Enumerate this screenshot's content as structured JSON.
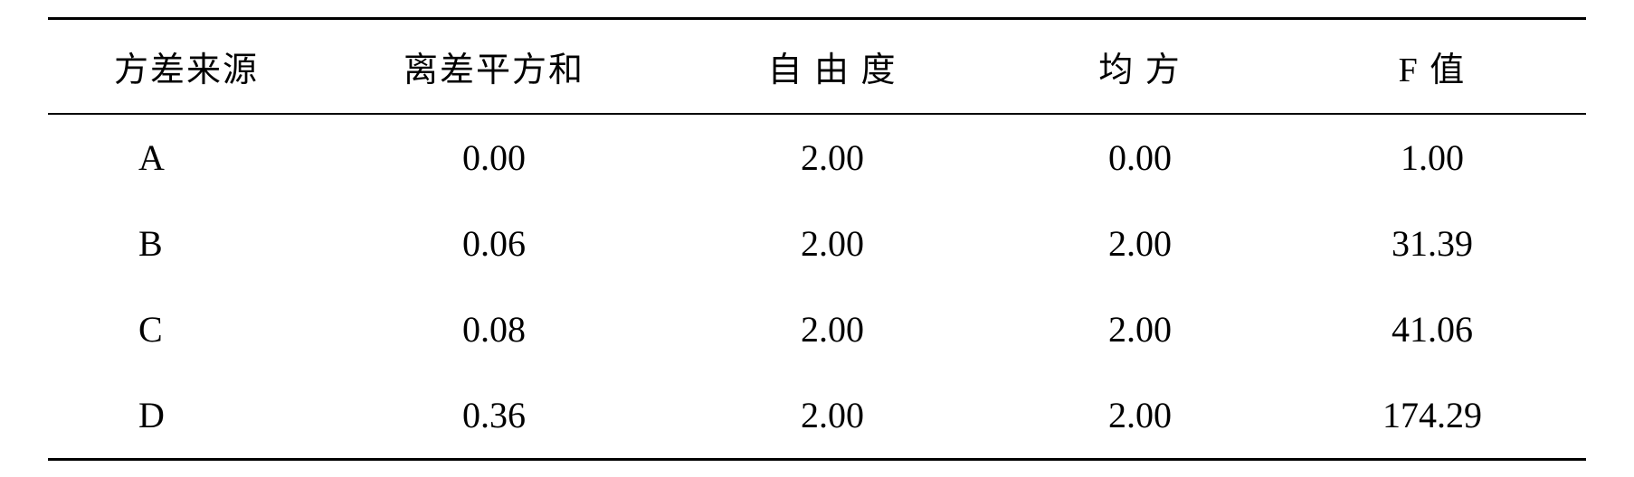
{
  "table": {
    "columns": [
      "方差来源",
      "离差平方和",
      "自 由 度",
      "均 方",
      "F 值"
    ],
    "rows": [
      [
        "A",
        "0.00",
        "2.00",
        "0.00",
        "1.00"
      ],
      [
        "B",
        "0.06",
        "2.00",
        "2.00",
        "31.39"
      ],
      [
        "C",
        "0.08",
        "2.00",
        "2.00",
        "41.06"
      ],
      [
        "D",
        "0.36",
        "2.00",
        "2.00",
        "174.29"
      ]
    ],
    "border_color": "#000000",
    "background_color": "#ffffff",
    "header_fontsize": 38,
    "cell_fontsize": 40,
    "top_border_width": 3,
    "header_bottom_border_width": 2,
    "bottom_border_width": 3
  }
}
